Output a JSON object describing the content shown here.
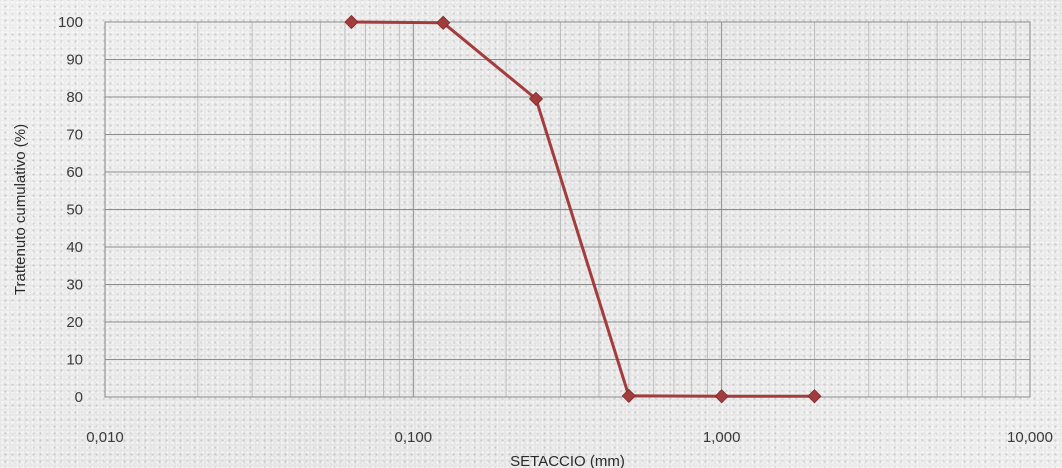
{
  "chart_data": {
    "type": "line",
    "title": "",
    "xlabel": "SETACCIO (mm)",
    "ylabel": "Trattenuto cumulativo (%)",
    "x_scale": "log",
    "xlim": [
      0.01,
      10
    ],
    "ylim": [
      0,
      100
    ],
    "x_ticks": [
      0.01,
      0.1,
      1,
      10
    ],
    "x_tick_labels": [
      "0,010",
      "0,100",
      "1,000",
      "10,000"
    ],
    "y_ticks": [
      0,
      10,
      20,
      30,
      40,
      50,
      60,
      70,
      80,
      90,
      100
    ],
    "y_tick_labels": [
      "0",
      "10",
      "20",
      "30",
      "40",
      "50",
      "60",
      "70",
      "80",
      "90",
      "100"
    ],
    "grid": true,
    "legend": "none",
    "series": [
      {
        "marker": "diamond",
        "color": "#a33c3c",
        "x": [
          0.063,
          0.125,
          0.25,
          0.5,
          1.0,
          2.0
        ],
        "y": [
          100,
          99.8,
          79.5,
          0.3,
          0.2,
          0.2
        ]
      }
    ]
  }
}
